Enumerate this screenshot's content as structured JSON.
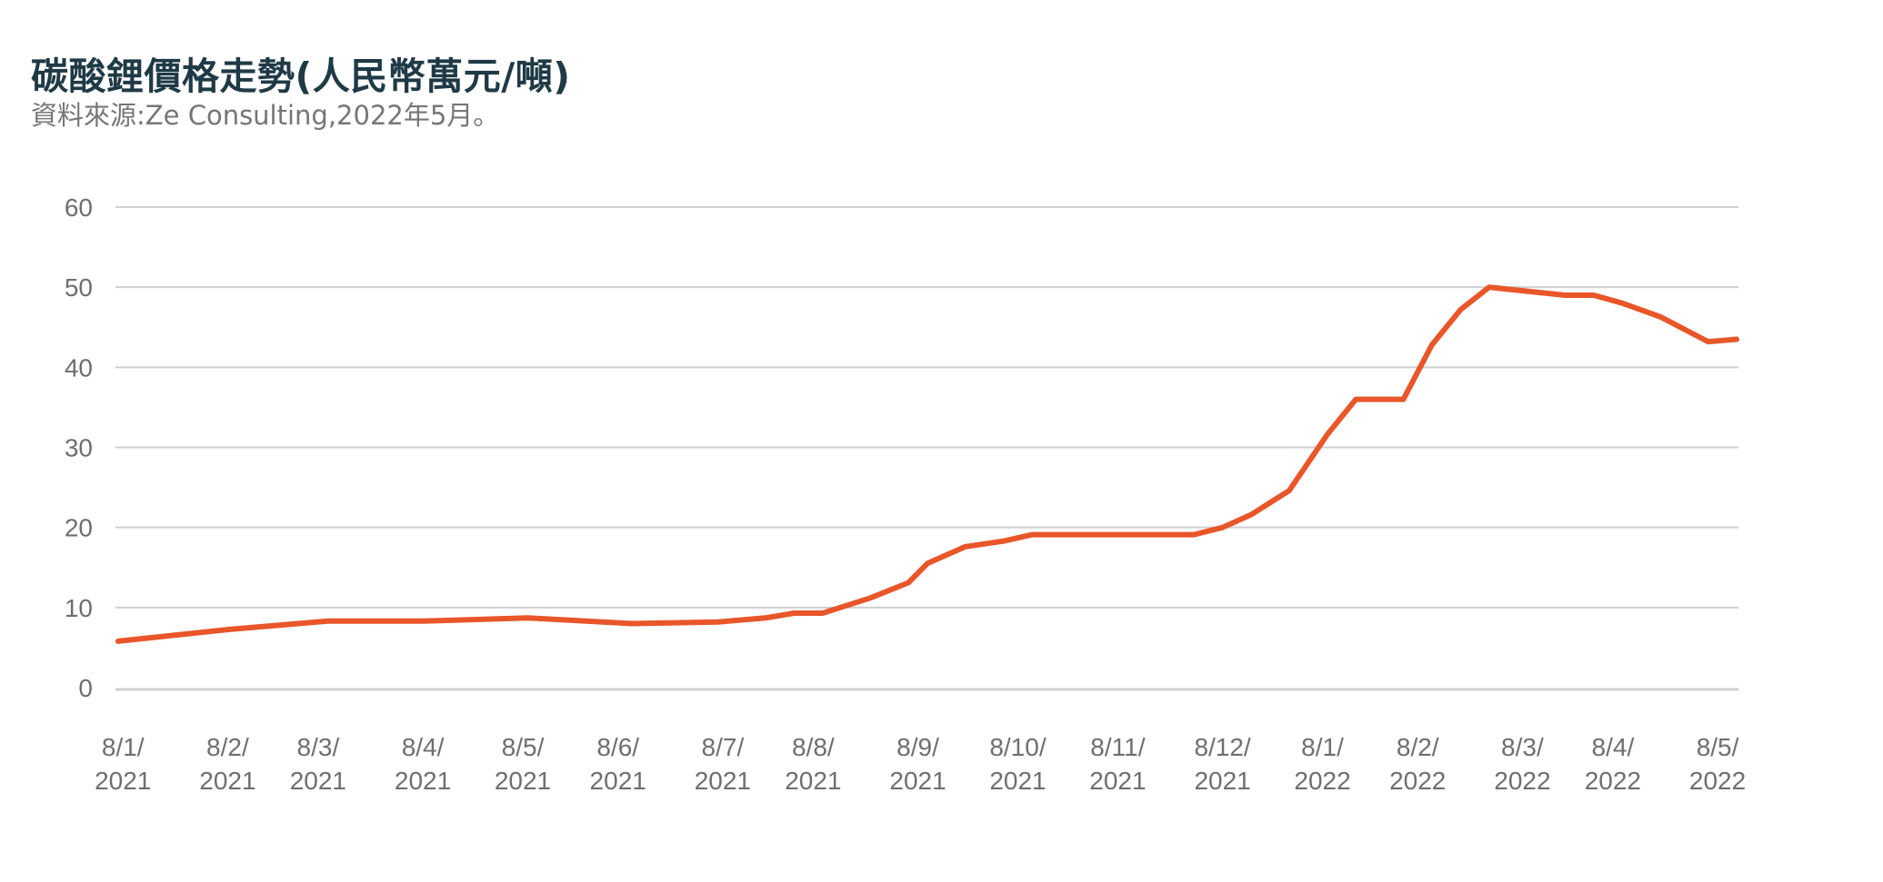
{
  "chart_data": {
    "type": "line",
    "title": "碳酸鋰價格走勢(人民幣萬元/噸)",
    "subtitle": "資料來源:Ze Consulting,2022年5月。",
    "xlabel": "",
    "ylabel": "",
    "ylim": [
      0,
      60
    ],
    "y_ticks": [
      "0",
      "10",
      "20",
      "30",
      "40",
      "50",
      "60"
    ],
    "grid": true,
    "legend": "none",
    "line_color": "#e8562a",
    "x_tick_labels": [
      [
        "8/1/",
        "2021"
      ],
      [
        "8/2/",
        "2021"
      ],
      [
        "8/3/",
        "2021"
      ],
      [
        "8/4/",
        "2021"
      ],
      [
        "8/5/",
        "2021"
      ],
      [
        "8/6/",
        "2021"
      ],
      [
        "8/7/",
        "2021"
      ],
      [
        "8/8/",
        "2021"
      ],
      [
        "8/9/",
        "2021"
      ],
      [
        "8/10/",
        "2021"
      ],
      [
        "8/11/",
        "2021"
      ],
      [
        "8/12/",
        "2021"
      ],
      [
        "8/1/",
        "2022"
      ],
      [
        "8/2/",
        "2022"
      ],
      [
        "8/3/",
        "2022"
      ],
      [
        "8/4/",
        "2022"
      ],
      [
        "8/5/",
        "2022"
      ]
    ],
    "x_tick_positions": [
      0.05,
      1.15,
      2.1,
      3.2,
      4.25,
      5.25,
      6.35,
      7.3,
      8.4,
      9.45,
      10.5,
      11.6,
      12.65,
      13.65,
      14.75,
      15.7,
      16.8
    ],
    "series": [
      {
        "x": [
          0,
          1.2,
          2.2,
          3.2,
          4.3,
          5.4,
          6.3,
          6.8,
          7.1,
          7.4,
          7.9,
          8.3,
          8.5,
          8.9,
          9.3,
          9.6,
          10.1,
          10.6,
          11.3,
          11.6,
          11.9,
          12.3,
          12.7,
          13.0,
          13.5,
          13.8,
          14.1,
          14.4,
          14.8,
          15.2,
          15.5,
          15.8,
          16.2,
          16.7,
          17.0
        ],
        "values": [
          5.8,
          7.3,
          8.3,
          8.3,
          8.7,
          8.0,
          8.2,
          8.7,
          9.3,
          9.3,
          11.2,
          13.1,
          15.5,
          17.6,
          18.3,
          19.1,
          19.1,
          19.1,
          19.1,
          20.0,
          21.6,
          24.6,
          31.6,
          36.0,
          36.0,
          42.8,
          47.2,
          50.0,
          49.5,
          49.0,
          49.0,
          48.0,
          46.3,
          43.2,
          43.5
        ]
      }
    ]
  }
}
